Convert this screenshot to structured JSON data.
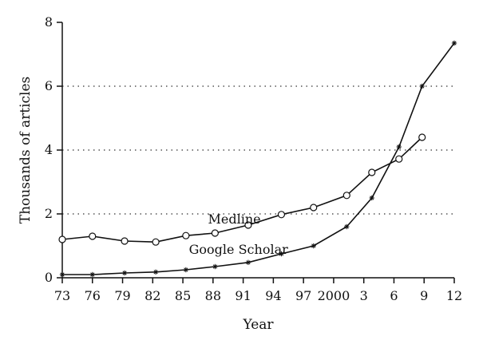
{
  "chart_data": {
    "type": "line",
    "xlabel": "Year",
    "ylabel": "Thousands of articles",
    "xlim": [
      1973,
      2012
    ],
    "ylim": [
      0,
      8
    ],
    "grid": "horizontal-dotted",
    "x_ticks": [
      {
        "value": 1973,
        "label": "73"
      },
      {
        "value": 1976,
        "label": "76"
      },
      {
        "value": 1979,
        "label": "79"
      },
      {
        "value": 1982,
        "label": "82"
      },
      {
        "value": 1985,
        "label": "85"
      },
      {
        "value": 1988,
        "label": "88"
      },
      {
        "value": 1991,
        "label": "91"
      },
      {
        "value": 1994,
        "label": "94"
      },
      {
        "value": 1997,
        "label": "97"
      },
      {
        "value": 2000,
        "label": "2000"
      },
      {
        "value": 2003,
        "label": "3"
      },
      {
        "value": 2006,
        "label": "6"
      },
      {
        "value": 2009,
        "label": "9"
      },
      {
        "value": 2012,
        "label": "12"
      }
    ],
    "y_ticks": [
      {
        "value": 0,
        "label": "0"
      },
      {
        "value": 2,
        "label": "2"
      },
      {
        "value": 4,
        "label": "4"
      },
      {
        "value": 6,
        "label": "6"
      },
      {
        "value": 8,
        "label": "8"
      }
    ],
    "series": [
      {
        "name": "Medline",
        "marker": "circle",
        "label_anchor": {
          "x": 1987.5,
          "y": 1.7
        },
        "x": [
          1973,
          1976,
          1979.2,
          1982.3,
          1985.3,
          1988.2,
          1991.5,
          1994.8,
          1998,
          2001.3,
          2003.8,
          2006.5,
          2008.8
        ],
        "y": [
          1.2,
          1.3,
          1.15,
          1.12,
          1.32,
          1.4,
          1.65,
          1.98,
          2.2,
          2.58,
          3.3,
          3.72,
          4.4
        ]
      },
      {
        "name": "Google Scholar",
        "marker": "star",
        "label_anchor": {
          "x": 1985.6,
          "y": 0.75
        },
        "x": [
          1973,
          1976,
          1979.2,
          1982.3,
          1985.3,
          1988.2,
          1991.5,
          1994.8,
          1998,
          2001.3,
          2003.8,
          2006.5,
          2008.8,
          2012
        ],
        "y": [
          0.1,
          0.1,
          0.15,
          0.18,
          0.25,
          0.35,
          0.48,
          0.75,
          1.0,
          1.6,
          2.5,
          4.1,
          6.0,
          7.35
        ]
      }
    ]
  }
}
